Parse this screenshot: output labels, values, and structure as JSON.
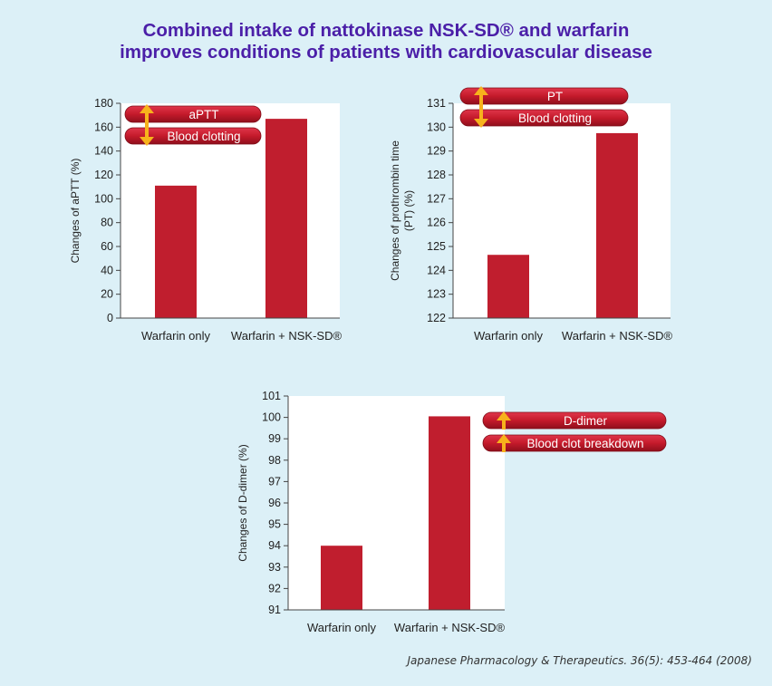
{
  "title_line1": "Combined intake of nattokinase NSK-SD® and warfarin",
  "title_line2": "improves conditions of patients with cardiovascular disease",
  "source": "Japanese Pharmacology & Therapeutics. 36(5): 453-464 (2008)",
  "colors": {
    "bar": "#c01e2e",
    "title": "#4b1fa8",
    "badge": "#c41a2b",
    "arrow": "#f7b21c",
    "background": "#dcf0f7"
  },
  "chart_data": [
    {
      "type": "bar",
      "ylabel": "Changes of aPTT (%)",
      "categories": [
        "Warfarin only",
        "Warfarin + NSK-SD®"
      ],
      "values": [
        111,
        167
      ],
      "ylim": [
        0,
        180
      ],
      "yticks": [
        0,
        20,
        40,
        60,
        80,
        100,
        120,
        140,
        160,
        180
      ],
      "badges": [
        {
          "label": "aPTT",
          "arrow": "double"
        },
        {
          "label": "Blood clotting",
          "arrow": "double"
        }
      ]
    },
    {
      "type": "bar",
      "ylabel": "Changes of prothrombin time (PT) (%)",
      "ylabel_lines": [
        "Changes of prothrombin time",
        "(PT) (%)"
      ],
      "categories": [
        "Warfarin only",
        "Warfarin + NSK-SD®"
      ],
      "values": [
        124.65,
        129.75
      ],
      "ylim": [
        122,
        131
      ],
      "yticks": [
        122,
        123,
        124,
        125,
        126,
        127,
        128,
        129,
        130,
        131
      ],
      "badges": [
        {
          "label": "PT",
          "arrow": "double"
        },
        {
          "label": "Blood clotting",
          "arrow": "double"
        }
      ]
    },
    {
      "type": "bar",
      "ylabel": "Changes of D-dimer (%)",
      "categories": [
        "Warfarin only",
        "Warfarin + NSK-SD®"
      ],
      "values": [
        94,
        100.05
      ],
      "ylim": [
        91,
        101
      ],
      "yticks": [
        91,
        92,
        93,
        94,
        95,
        96,
        97,
        98,
        99,
        100,
        101
      ],
      "badges": [
        {
          "label": "D-dimer",
          "arrow": "up"
        },
        {
          "label": "Blood clot breakdown",
          "arrow": "up"
        }
      ]
    }
  ]
}
